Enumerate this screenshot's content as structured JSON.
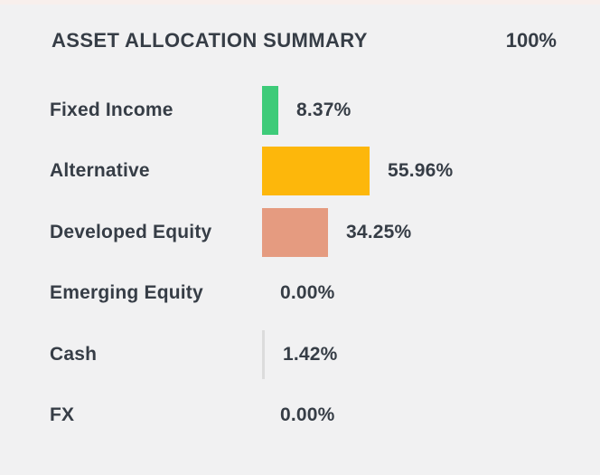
{
  "header": {
    "title": "ASSET ALLOCATION SUMMARY",
    "total": "100%"
  },
  "chart_data": {
    "type": "bar",
    "orientation": "horizontal",
    "title": "ASSET ALLOCATION SUMMARY",
    "total_label": "100%",
    "unit": "%",
    "xlim": [
      0,
      100
    ],
    "grid": false,
    "legend": false,
    "categories": [
      "Fixed Income",
      "Alternative",
      "Developed Equity",
      "Emerging Equity",
      "Cash",
      "FX"
    ],
    "values": [
      8.37,
      55.96,
      34.25,
      0.0,
      1.42,
      0.0
    ],
    "items": [
      {
        "label": "Fixed Income",
        "value": 8.37,
        "display": "8.37%",
        "color": "#3ecb79"
      },
      {
        "label": "Alternative",
        "value": 55.96,
        "display": "55.96%",
        "color": "#fdb70b"
      },
      {
        "label": "Developed Equity",
        "value": 34.25,
        "display": "34.25%",
        "color": "#e59b80"
      },
      {
        "label": "Emerging Equity",
        "value": 0.0,
        "display": "0.00%",
        "color": "#dcdcdc"
      },
      {
        "label": "Cash",
        "value": 1.42,
        "display": "1.42%",
        "color": "#dcdcdc"
      },
      {
        "label": "FX",
        "value": 0.0,
        "display": "0.00%",
        "color": "#dcdcdc"
      }
    ]
  },
  "colors": {
    "background": "#f1f1f2",
    "text": "#363d46",
    "top_strip": "#f8efec"
  }
}
